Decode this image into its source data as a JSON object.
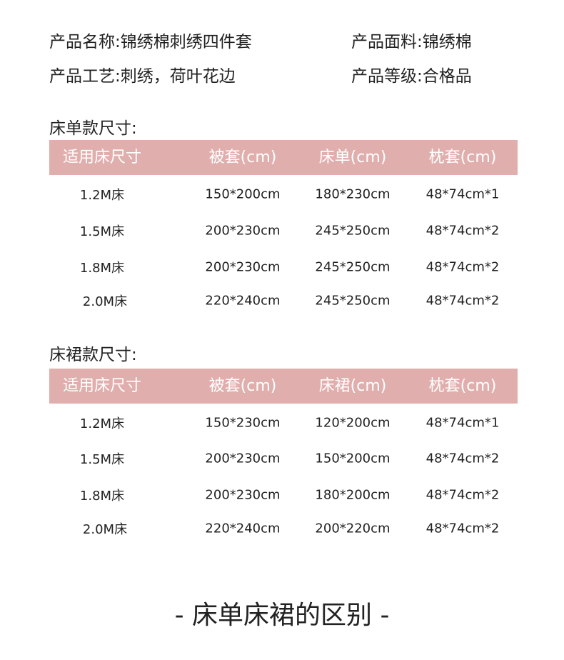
{
  "info": {
    "name": "产品名称:锦绣棉刺绣四件套",
    "fabric": "产品面料:锦绣棉",
    "craft": "产品工艺:刺绣，荷叶花边",
    "grade": "产品等级:合格品"
  },
  "tables": [
    {
      "title": "床单款尺寸:",
      "headers": [
        "适用床尺寸",
        "被套(cm)",
        "床单(cm)",
        "枕套(cm)"
      ],
      "rows": [
        [
          "1.2M床",
          "150*200cm",
          "180*230cm",
          "48*74cm*1"
        ],
        [
          "1.5M床",
          "200*230cm",
          "245*250cm",
          "48*74cm*2"
        ],
        [
          "1.8M床",
          "200*230cm",
          "245*250cm",
          "48*74cm*2"
        ],
        [
          "2.0M床",
          "220*240cm",
          "245*250cm",
          "48*74cm*2"
        ]
      ]
    },
    {
      "title": "床裙款尺寸:",
      "headers": [
        "适用床尺寸",
        "被套(cm)",
        "床裙(cm)",
        "枕套(cm)"
      ],
      "rows": [
        [
          "1.2M床",
          "150*230cm",
          "120*200cm",
          "48*74cm*1"
        ],
        [
          "1.5M床",
          "200*230cm",
          "150*200cm",
          "48*74cm*2"
        ],
        [
          "1.8M床",
          "200*230cm",
          "180*200cm",
          "48*74cm*2"
        ],
        [
          "2.0M床",
          "220*240cm",
          "200*220cm",
          "48*74cm*2"
        ]
      ]
    }
  ],
  "footer": "- 床单床裙的区别 -",
  "colors": {
    "header_bg": "#e0afad",
    "header_text": "#ffffff"
  }
}
